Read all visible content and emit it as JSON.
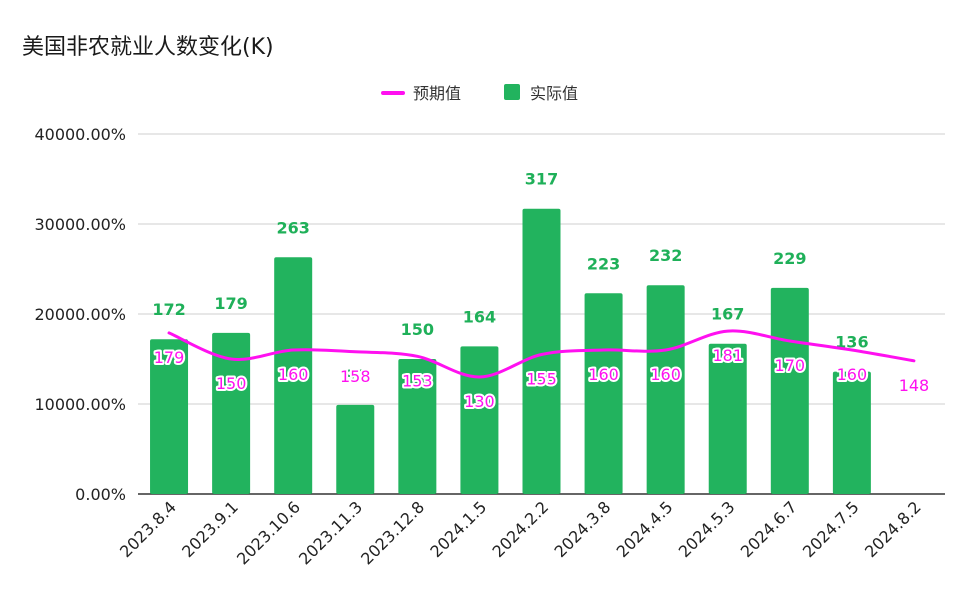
{
  "chart_data": {
    "type": "bar",
    "title": "美国非农就业人数变化(K)",
    "categories": [
      "2023.8.4",
      "2023.9.1",
      "2023.10.6",
      "2023.11.3",
      "2023.12.8",
      "2024.1.5",
      "2024.2.2",
      "2024.3.8",
      "2024.4.5",
      "2024.5.3",
      "2024.6.7",
      "2024.7.5",
      "2024.8.2"
    ],
    "series": [
      {
        "name": "预期值",
        "kind": "line",
        "color": "#ff10f0",
        "values": [
          179,
          150,
          160,
          158,
          153,
          130,
          155,
          160,
          160,
          181,
          170,
          160,
          148
        ]
      },
      {
        "name": "实际值",
        "kind": "bar",
        "color": "#22b35e",
        "values": [
          172,
          179,
          263,
          99,
          150,
          164,
          317,
          223,
          232,
          167,
          229,
          136,
          null
        ]
      }
    ],
    "yaxis": {
      "ticks": [
        0,
        100,
        200,
        300,
        400
      ],
      "tick_labels": [
        "0.00%",
        "10000.00%",
        "20000.00%",
        "30000.00%",
        "40000.00%"
      ],
      "ylim": [
        0,
        400
      ]
    },
    "legend": "top-center",
    "grid": true
  }
}
